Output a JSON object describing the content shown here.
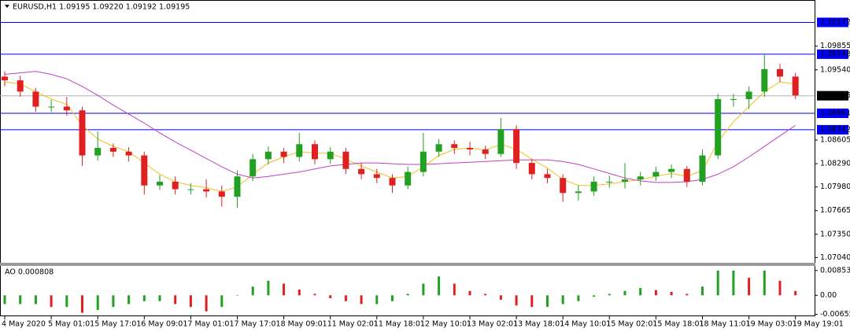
{
  "chart_data": [
    {
      "type": "candlestick",
      "title": "EURUSD,H1  1.09195 1.09220 1.09192 1.09195",
      "categories": [
        "4 May 2020",
        null,
        null,
        "5 May 01:01",
        null,
        null,
        "5 May 17:01",
        null,
        null,
        "6 May 09:01",
        null,
        null,
        "7 May 01:01",
        null,
        null,
        "7 May 17:01",
        null,
        null,
        "8 May 09:01",
        null,
        null,
        "11 May 02:01",
        null,
        null,
        "11 May 18:01",
        null,
        null,
        "12 May 10:01",
        null,
        null,
        "13 May 02:01",
        null,
        null,
        "13 May 18:01",
        null,
        null,
        "14 May 10:01",
        null,
        null,
        "15 May 02:01",
        null,
        null,
        "15 May 18:01",
        null,
        null,
        "18 May 11:01",
        null,
        null,
        "19 May 03:01",
        null,
        null,
        "19 May 19:01"
      ],
      "open": [
        1.0945,
        1.094,
        1.0925,
        1.0905,
        1.0905,
        1.09,
        1.084,
        1.085,
        1.0845,
        1.084,
        1.08,
        1.0805,
        1.0795,
        1.0795,
        1.0792,
        1.0785,
        1.0812,
        1.0835,
        1.0845,
        1.0838,
        1.0855,
        1.0835,
        1.0845,
        1.0822,
        1.0815,
        1.081,
        1.08,
        1.0818,
        1.0845,
        1.0855,
        1.085,
        1.0848,
        1.0842,
        1.0875,
        1.083,
        1.0815,
        1.081,
        1.079,
        1.0792,
        1.0805,
        1.0805,
        1.0808,
        1.0812,
        1.0818,
        1.0822,
        1.0805,
        1.084,
        1.0915,
        1.0915,
        1.0925,
        1.0955,
        1.0945
      ],
      "high": [
        1.0952,
        1.0946,
        1.093,
        1.0914,
        1.0918,
        1.0905,
        1.0872,
        1.0856,
        1.0851,
        1.0845,
        1.0814,
        1.0812,
        1.0803,
        1.0808,
        1.08,
        1.082,
        1.0842,
        1.0852,
        1.085,
        1.087,
        1.086,
        1.0851,
        1.085,
        1.083,
        1.0822,
        1.0815,
        1.0825,
        1.087,
        1.0862,
        1.086,
        1.0858,
        1.0853,
        1.089,
        1.088,
        1.0835,
        1.0822,
        1.0815,
        1.08,
        1.0812,
        1.0813,
        1.083,
        1.0818,
        1.0825,
        1.0828,
        1.0826,
        1.0848,
        1.0922,
        1.0922,
        1.0932,
        1.0975,
        1.0962,
        1.095
      ],
      "low": [
        1.0932,
        1.0918,
        1.0898,
        1.0898,
        1.0893,
        1.0826,
        1.0833,
        1.0838,
        1.0832,
        1.0788,
        1.0794,
        1.0788,
        1.0788,
        1.0784,
        1.0772,
        1.077,
        1.0806,
        1.0828,
        1.083,
        1.0832,
        1.0828,
        1.0829,
        1.0815,
        1.0808,
        1.0803,
        1.079,
        1.0795,
        1.0812,
        1.0838,
        1.0842,
        1.084,
        1.0835,
        1.0838,
        1.0822,
        1.0808,
        1.0803,
        1.0778,
        1.078,
        1.0786,
        1.0797,
        1.0796,
        1.08,
        1.0806,
        1.081,
        1.0798,
        1.08,
        1.0835,
        1.0905,
        1.0902,
        1.0918,
        1.0938,
        1.0915
      ],
      "close": [
        1.094,
        1.0925,
        1.0905,
        1.0905,
        1.09,
        1.084,
        1.085,
        1.0845,
        1.084,
        1.08,
        1.0805,
        1.0795,
        1.0795,
        1.0792,
        1.0785,
        1.0812,
        1.0835,
        1.0845,
        1.0838,
        1.0855,
        1.0835,
        1.0845,
        1.0822,
        1.0815,
        1.081,
        1.08,
        1.0818,
        1.0845,
        1.0855,
        1.085,
        1.0848,
        1.0842,
        1.0875,
        1.083,
        1.0815,
        1.081,
        1.079,
        1.0792,
        1.0805,
        1.0805,
        1.0808,
        1.0812,
        1.0818,
        1.0822,
        1.0805,
        1.084,
        1.0915,
        1.0915,
        1.0925,
        1.0955,
        1.0945,
        1.092
      ],
      "up_color": "#22a022",
      "down_color": "#e02020",
      "lines": [
        {
          "color": "#f0c020",
          "values": [
            1.0938,
            1.0935,
            1.0925,
            1.0915,
            1.0908,
            1.088,
            1.0862,
            1.0852,
            1.0845,
            1.083,
            1.0815,
            1.0805,
            1.08,
            1.0797,
            1.0792,
            1.0798,
            1.0815,
            1.083,
            1.0838,
            1.0845,
            1.0843,
            1.0843,
            1.0835,
            1.0826,
            1.0818,
            1.081,
            1.0812,
            1.0825,
            1.084,
            1.0848,
            1.085,
            1.0847,
            1.0855,
            1.0848,
            1.0835,
            1.0823,
            1.0808,
            1.08,
            1.08,
            1.0802,
            1.0805,
            1.0808,
            1.0812,
            1.0816,
            1.0812,
            1.082,
            1.0858,
            1.0885,
            1.0905,
            1.0925,
            1.0938,
            1.0935
          ]
        },
        {
          "color": "#c040c0",
          "values": [
            1.0948,
            1.095,
            1.0952,
            1.0948,
            1.0942,
            1.0932,
            1.092,
            1.0907,
            1.0895,
            1.0883,
            1.087,
            1.0858,
            1.0847,
            1.0836,
            1.0825,
            1.0815,
            1.081,
            1.0812,
            1.0815,
            1.0818,
            1.0822,
            1.0826,
            1.0828,
            1.083,
            1.083,
            1.0829,
            1.0828,
            1.0828,
            1.0829,
            1.083,
            1.0831,
            1.0832,
            1.0833,
            1.0834,
            1.0834,
            1.0834,
            1.0832,
            1.0828,
            1.0822,
            1.0816,
            1.081,
            1.0806,
            1.0804,
            1.0804,
            1.0805,
            1.0808,
            1.0815,
            1.0825,
            1.0838,
            1.0852,
            1.0866,
            1.088
          ]
        }
      ],
      "levels": [
        {
          "value": 1.10172,
          "color": "#0000ff"
        },
        {
          "value": 1.09748,
          "color": "#0000ff"
        },
        {
          "value": 1.08961,
          "color": "#0000ff"
        },
        {
          "value": 1.08742,
          "color": "#0000ff"
        }
      ],
      "last": 1.09195,
      "ylim": [
        1.0696,
        1.1047
      ],
      "yticks": [
        1.09855,
        {
          "value": 1.0954,
          "label": "1.09540"
        },
        1.08605,
        {
          "value": 1.0829,
          "label": "1.08290"
        },
        {
          "value": 1.0798,
          "label": "1.07980"
        },
        1.07665,
        {
          "value": 1.0735,
          "label": "1.07350"
        },
        {
          "value": 1.0704,
          "label": "1.07040"
        }
      ]
    },
    {
      "type": "histogram-oscillator",
      "title": "AO 0.000808",
      "values": [
        -0.003,
        -0.003,
        -0.003,
        -0.004,
        -0.004,
        -0.006,
        -0.005,
        -0.004,
        -0.003,
        -0.002,
        -0.002,
        -0.003,
        -0.004,
        -0.0055,
        -0.004,
        0.0,
        0.003,
        0.005,
        0.004,
        0.002,
        0.0005,
        -0.001,
        -0.002,
        -0.003,
        -0.003,
        -0.002,
        0.0005,
        0.004,
        0.0065,
        0.004,
        0.0015,
        0.0005,
        -0.0015,
        -0.0035,
        -0.004,
        -0.004,
        -0.003,
        -0.002,
        -0.0005,
        0.0005,
        0.0015,
        0.0025,
        0.0018,
        0.0012,
        0.0005,
        0.003,
        0.0085,
        0.0085,
        0.006,
        0.0085,
        0.005,
        0.0015
      ],
      "up_color": "#22a022",
      "down_color": "#e02020",
      "ylim": [
        -0.0072,
        0.0101
      ],
      "yticks": [
        0.00853,
        {
          "value": 0,
          "label": "0.00"
        },
        -0.00655
      ]
    }
  ]
}
